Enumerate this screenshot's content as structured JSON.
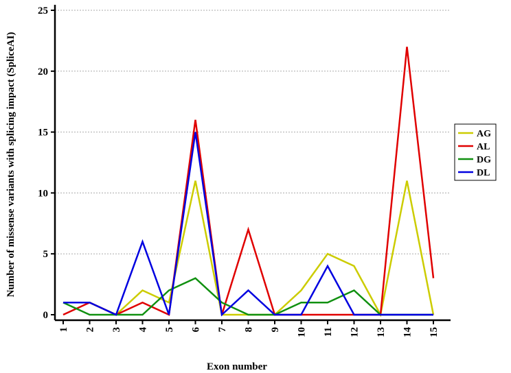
{
  "chart_data": {
    "type": "line",
    "xlabel": "Exon number",
    "ylabel": "Number of missense variants with splicing impact (SpliceAI)",
    "x": [
      1,
      2,
      3,
      4,
      5,
      6,
      7,
      8,
      9,
      10,
      11,
      12,
      13,
      14,
      15
    ],
    "ylim": [
      0,
      25
    ],
    "yticks": [
      0,
      5,
      10,
      15,
      20,
      25
    ],
    "grid": "horizontal dotted",
    "legend_position": "right",
    "series": [
      {
        "name": "AG",
        "color": "#cccc00",
        "values": [
          1,
          1,
          0,
          2,
          1,
          11,
          0,
          0,
          0,
          2,
          5,
          4,
          0,
          11,
          0
        ]
      },
      {
        "name": "AL",
        "color": "#e00000",
        "values": [
          0,
          1,
          0,
          1,
          0,
          16,
          0,
          7,
          0,
          0,
          0,
          0,
          0,
          22,
          3
        ]
      },
      {
        "name": "DG",
        "color": "#109010",
        "values": [
          1,
          0,
          0,
          0,
          2,
          3,
          1,
          0,
          0,
          1,
          1,
          2,
          0,
          0,
          0
        ]
      },
      {
        "name": "DL",
        "color": "#0000e0",
        "values": [
          1,
          1,
          0,
          6,
          0,
          15,
          0,
          2,
          0,
          0,
          4,
          0,
          0,
          0,
          0
        ]
      }
    ]
  }
}
